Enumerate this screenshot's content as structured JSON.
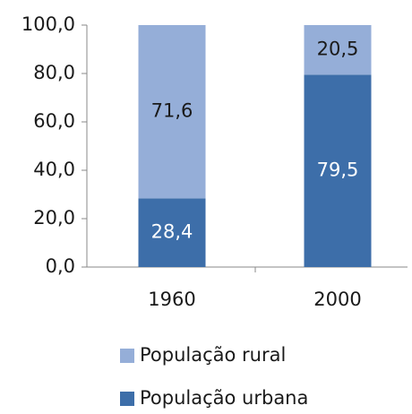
{
  "chart_data": {
    "type": "stacked_bar",
    "categories": [
      "1960",
      "2000"
    ],
    "series": [
      {
        "name": "População urbana",
        "color": "#3d6ea9",
        "values": [
          28.4,
          79.5
        ],
        "value_labels": [
          "28,4",
          "79,5"
        ],
        "label_color": "#ffffff"
      },
      {
        "name": "População rural",
        "color": "#95aed8",
        "values": [
          71.6,
          20.5
        ],
        "value_labels": [
          "71,6",
          "20,5"
        ],
        "label_color": "#1a1a1a"
      }
    ],
    "ylim": [
      0,
      100
    ],
    "yticks": [
      {
        "value": 0,
        "label": "0,0"
      },
      {
        "value": 20,
        "label": "20,0"
      },
      {
        "value": 40,
        "label": "40,0"
      },
      {
        "value": 60,
        "label": "60,0"
      },
      {
        "value": 80,
        "label": "80,0"
      },
      {
        "value": 100,
        "label": "100,0"
      }
    ],
    "grid": false
  }
}
